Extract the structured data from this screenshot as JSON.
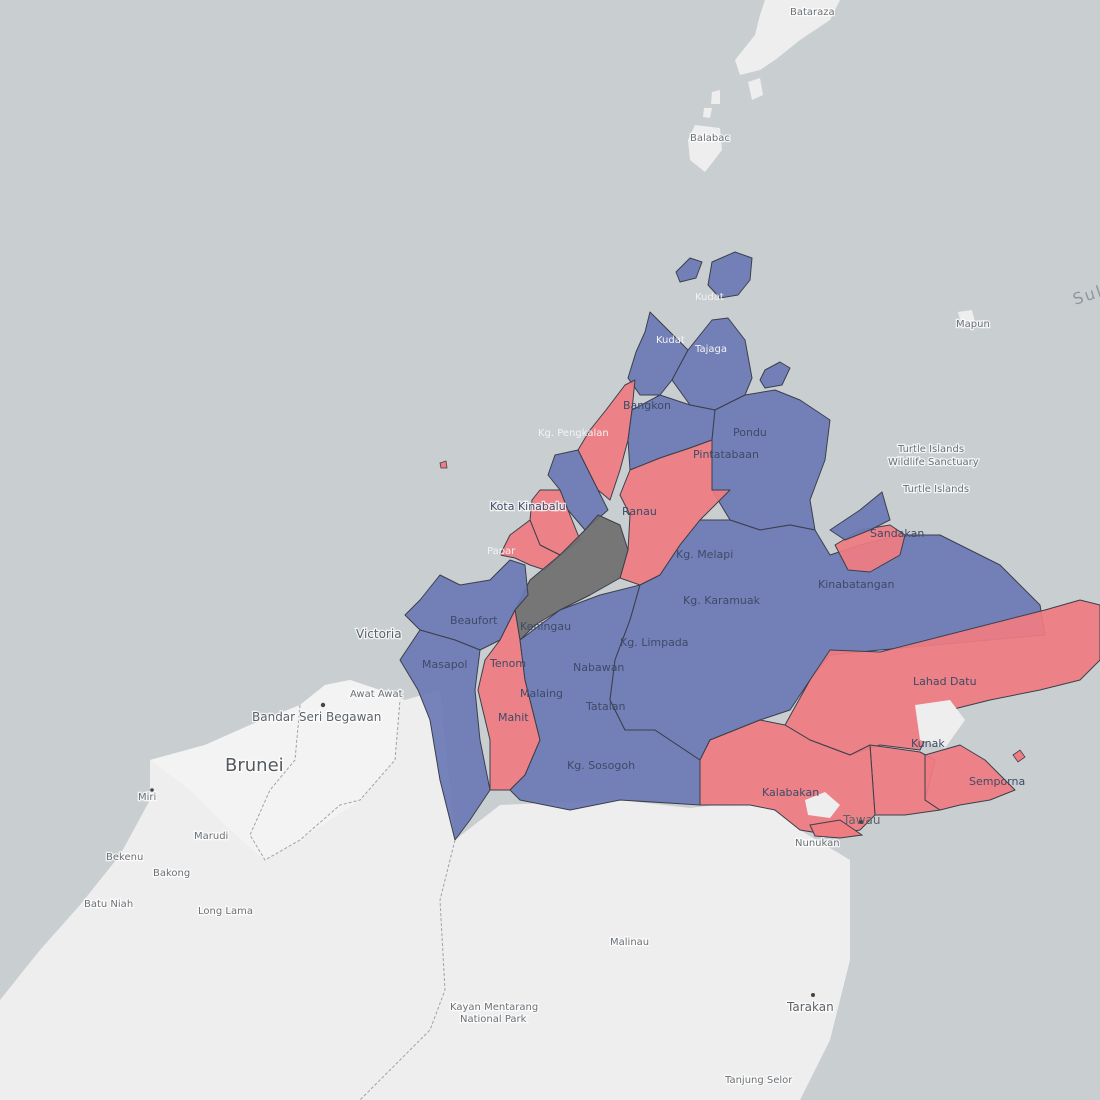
{
  "colors": {
    "sea": "#c9cfd1",
    "land": "#eeeeee",
    "blue": "#6b7ab5",
    "red": "#ef7c81",
    "grey": "#6f6f6f",
    "outline": "#3b3f4a"
  },
  "labels": {
    "bataraza": "Bataraza",
    "balabac": "Balabac",
    "kudat_town": "Kudat",
    "kudat": "Kudat",
    "tajaga": "Tajaga",
    "bangkon": "Bangkon",
    "pondu": "Pondu",
    "pintatabaan": "Pintatabaan",
    "kg_pengkalan": "Kg. Pengkalan",
    "kota_kinabalu": "Kota Kinabalu",
    "ranau": "Ranau",
    "papar": "Papar",
    "kg_melapi": "Kg. Melapi",
    "kg_karamuak": "Kg. Karamuak",
    "kinabatangan": "Kinabatangan",
    "turtle_islands_ws": "Turtle Islands Wildlife Sanctuary",
    "turtle_islands": "Turtle Islands",
    "mapun": "Mapun",
    "sulu_sea": "Sulu",
    "victoria": "Victoria",
    "beaufort": "Beaufort",
    "keningau": "Keningau",
    "kg_limpada": "Kg. Limpada",
    "masapol": "Masapol",
    "tenom": "Tenom",
    "nabawan": "Nabawan",
    "awat_awat": "Awat Awat",
    "bandar_seri_begawan": "Bandar Seri Begawan",
    "brunei": "Brunei",
    "malaing": "Malaing",
    "tatalan": "Tatalan",
    "mahit": "Mahit",
    "lahad_datu": "Lahad Datu",
    "kunak": "Kunak",
    "semporna": "Semporna",
    "kg_sosogoh": "Kg. Sosogoh",
    "kalabakan": "Kalabakan",
    "tawau": "Tawau",
    "nunukan": "Nunukan",
    "miri": "Miri",
    "marudi": "Marudi",
    "bekenu": "Bekenu",
    "bakong": "Bakong",
    "batu_niah": "Batu Niah",
    "long_lama": "Long Lama",
    "malinau": "Malinau",
    "kayan_mentarang_1": "Kayan Mentarang",
    "kayan_mentarang_2": "National Park",
    "tarakan": "Tarakan",
    "tanjung_selor": "Tanjung Selor",
    "sandakan": "Sandakan"
  }
}
